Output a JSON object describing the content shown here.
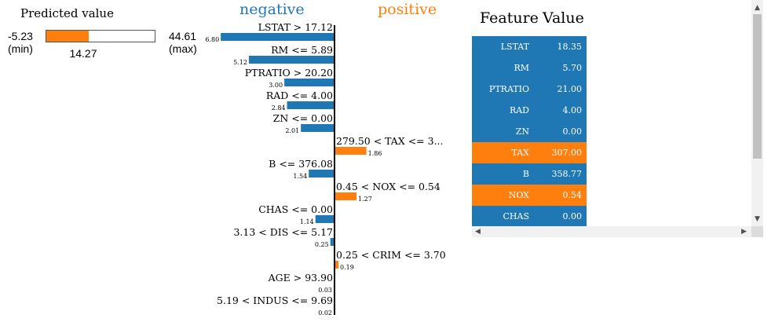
{
  "predicted": {
    "title": "Predicted value",
    "min_value": "-5.23",
    "min_label": "(min)",
    "max_value": "44.61",
    "max_label": "(max)",
    "value": "14.27",
    "fraction": 0.39,
    "color": "#ff7f0e"
  },
  "legend": {
    "negative": "negative",
    "positive": "positive"
  },
  "colors": {
    "negative": "#1f77b4",
    "positive": "#ff7f0e"
  },
  "chart_data": {
    "type": "bar",
    "categories": [
      "LSTAT > 17.12",
      "RM <= 5.89",
      "PTRATIO > 20.20",
      "RAD <= 4.00",
      "ZN <= 0.00",
      "279.50 < TAX <= 3...",
      "B <= 376.08",
      "0.45 < NOX <= 0.54",
      "CHAS <= 0.00",
      "3.13 < DIS <= 5.17",
      "0.25 < CRIM <= 3.70",
      "AGE > 93.90",
      "5.19 < INDUS <= 9.69"
    ],
    "values": [
      6.8,
      5.12,
      3.0,
      2.84,
      2.01,
      1.86,
      1.54,
      1.27,
      1.14,
      0.25,
      0.19,
      0.03,
      0.02
    ],
    "value_labels": [
      "6.80",
      "5.12",
      "3.00",
      "2.84",
      "2.01",
      "1.86",
      "1.54",
      "1.27",
      "1.14",
      "0.25",
      "0.19",
      "0.03",
      "0.02"
    ],
    "sides": [
      "negative",
      "negative",
      "negative",
      "negative",
      "negative",
      "positive",
      "negative",
      "positive",
      "negative",
      "negative",
      "positive",
      "negative",
      "negative"
    ]
  },
  "table": {
    "headers": [
      "Feature",
      "Value"
    ],
    "rows": [
      {
        "feature": "LSTAT",
        "value": "18.35",
        "side": "negative"
      },
      {
        "feature": "RM",
        "value": "5.70",
        "side": "negative"
      },
      {
        "feature": "PTRATIO",
        "value": "21.00",
        "side": "negative"
      },
      {
        "feature": "RAD",
        "value": "4.00",
        "side": "negative"
      },
      {
        "feature": "ZN",
        "value": "0.00",
        "side": "negative"
      },
      {
        "feature": "TAX",
        "value": "307.00",
        "side": "positive"
      },
      {
        "feature": "B",
        "value": "358.77",
        "side": "negative"
      },
      {
        "feature": "NOX",
        "value": "0.54",
        "side": "positive"
      },
      {
        "feature": "CHAS",
        "value": "0.00",
        "side": "negative"
      }
    ]
  },
  "scrollbar": {
    "up": "▲",
    "down": "▼",
    "left": "◀",
    "right": "▶"
  }
}
